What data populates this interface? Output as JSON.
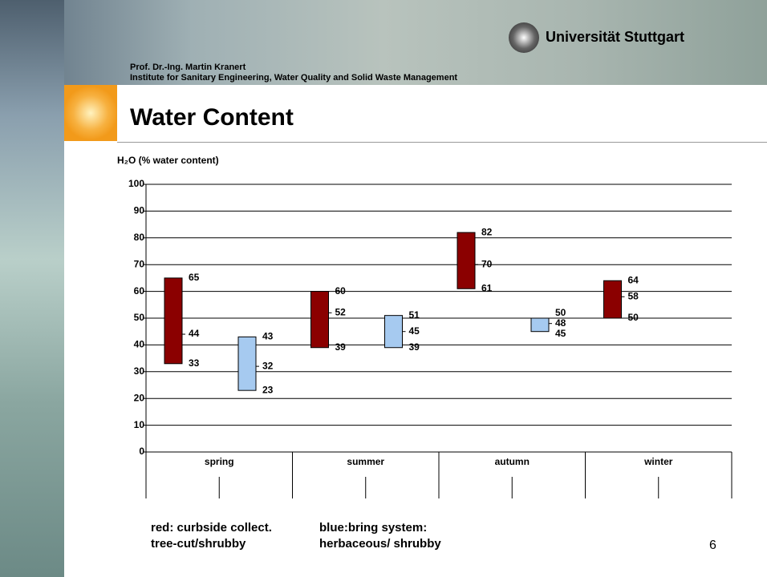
{
  "header": {
    "university": "Universität Stuttgart",
    "author": "Prof. Dr.-Ing. Martin Kranert",
    "institute": "Institute for Sanitary Engineering, Water Quality and Solid Waste Management"
  },
  "slide_title": "Water Content",
  "chart_data": {
    "type": "range-bar",
    "y_label": "H₂O (% water content)",
    "categories": [
      "spring",
      "summer",
      "autumn",
      "winter"
    ],
    "series": [
      {
        "color": "#8b0000",
        "high": [
          65,
          60,
          82,
          64
        ],
        "mid": [
          44,
          52,
          70,
          58
        ],
        "low": [
          33,
          39,
          61,
          50
        ]
      },
      {
        "color": "#a6caf0",
        "high": [
          43,
          51,
          50,
          null
        ],
        "mid": [
          32,
          45,
          48,
          null
        ],
        "low": [
          23,
          39,
          45,
          null
        ]
      }
    ],
    "ylim": [
      0,
      100
    ],
    "yticks": [
      0,
      10,
      20,
      30,
      40,
      50,
      60,
      70,
      80,
      90,
      100
    ],
    "grid": true
  },
  "legend_notes": [
    [
      "red: curbside collect.",
      "tree-cut/shrubby"
    ],
    [
      "blue:bring system:",
      "herbaceous/ shrubby"
    ]
  ],
  "page_number": 6
}
